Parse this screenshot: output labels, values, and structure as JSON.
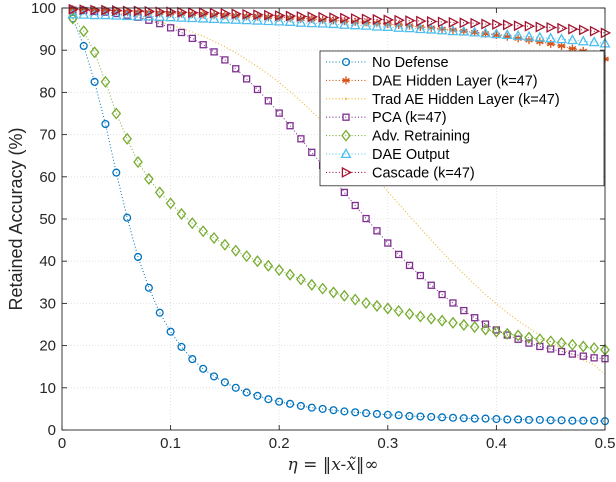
{
  "chart_data": {
    "type": "scatter",
    "title": "",
    "xlabel": "η = ‖x-x̃‖∞",
    "ylabel": "Retained Accuracy (%)",
    "xlim": [
      0,
      0.5
    ],
    "ylim": [
      0,
      100
    ],
    "xticks": [
      "0",
      "0.1",
      "0.2",
      "0.3",
      "0.4",
      "0.5"
    ],
    "yticks": [
      "0",
      "10",
      "20",
      "30",
      "40",
      "50",
      "60",
      "70",
      "80",
      "90",
      "100"
    ],
    "grid": true,
    "legend_position": "top-right",
    "x": [
      0.01,
      0.02,
      0.03,
      0.04,
      0.05,
      0.06,
      0.07,
      0.08,
      0.09,
      0.1,
      0.11,
      0.12,
      0.13,
      0.14,
      0.15,
      0.16,
      0.17,
      0.18,
      0.19,
      0.2,
      0.21,
      0.22,
      0.23,
      0.24,
      0.25,
      0.26,
      0.27,
      0.28,
      0.29,
      0.3,
      0.31,
      0.32,
      0.33,
      0.34,
      0.35,
      0.36,
      0.37,
      0.38,
      0.39,
      0.4,
      0.41,
      0.42,
      0.43,
      0.44,
      0.45,
      0.46,
      0.47,
      0.48,
      0.49,
      0.5
    ],
    "series": [
      {
        "name": "No Defense",
        "color": "#0072BD",
        "marker": "circle",
        "line": "dotted",
        "values": [
          97.5,
          91,
          82.5,
          72.5,
          61,
          50.3,
          41,
          33.7,
          27.8,
          23.3,
          19.7,
          16.8,
          14.5,
          12.7,
          11.3,
          10,
          8.9,
          8.1,
          7.3,
          6.7,
          6.2,
          5.7,
          5.3,
          5,
          4.7,
          4.4,
          4.2,
          4,
          3.8,
          3.6,
          3.5,
          3.3,
          3.2,
          3.1,
          3,
          2.9,
          2.8,
          2.7,
          2.7,
          2.6,
          2.5,
          2.5,
          2.4,
          2.4,
          2.3,
          2.3,
          2.2,
          2.2,
          2.2,
          2.1
        ]
      },
      {
        "name": "DAE Hidden Layer (k=47)",
        "color": "#D95319",
        "marker": "asterisk",
        "line": "dotted",
        "values": [
          99.7,
          99.6,
          99.5,
          99.4,
          99.3,
          99.2,
          99.1,
          99,
          98.9,
          98.8,
          98.7,
          98.6,
          98.5,
          98.4,
          98.3,
          98.2,
          98.1,
          98,
          97.9,
          97.8,
          97.7,
          97.5,
          97.4,
          97.2,
          97.1,
          96.9,
          96.7,
          96.6,
          96.4,
          96.2,
          96,
          95.8,
          95.5,
          95.3,
          95,
          94.8,
          94.5,
          94.2,
          93.9,
          93.6,
          93.2,
          92.8,
          92.4,
          92,
          91.5,
          91,
          90.4,
          89.8,
          89,
          87.9
        ]
      },
      {
        "name": "Trad AE Hidden Layer (k=47)",
        "color": "#EDB120",
        "marker": "dot",
        "line": "dotted",
        "values": [
          99.7,
          99.5,
          99.3,
          99,
          98.7,
          98.3,
          97.9,
          97.3,
          96.7,
          96,
          95.2,
          94.3,
          93.3,
          92.1,
          90.8,
          89.4,
          87.8,
          86.1,
          84.3,
          82.3,
          80.2,
          77.9,
          75.5,
          73,
          70.4,
          67.7,
          65,
          62.2,
          59.4,
          56.5,
          53.6,
          50.7,
          47.8,
          45,
          42.2,
          39.5,
          37,
          34.5,
          32.1,
          29.9,
          27.8,
          25.9,
          24.1,
          22.4,
          20.8,
          19.3,
          17.9,
          16.6,
          15.4,
          13.2
        ]
      },
      {
        "name": "PCA (k=47)",
        "color": "#7E2F8E",
        "marker": "square",
        "line": "dotted",
        "values": [
          99.5,
          99.4,
          99.2,
          99,
          98.7,
          98.3,
          97.8,
          97.1,
          96.3,
          95.3,
          94.2,
          92.8,
          91.3,
          89.6,
          87.7,
          85.6,
          83.2,
          80.7,
          78,
          75.1,
          72.1,
          69,
          65.8,
          62.7,
          59.5,
          56.3,
          53.2,
          50.1,
          47.2,
          44.3,
          41.6,
          39,
          36.6,
          34.3,
          32.1,
          30.1,
          28.3,
          26.6,
          25.1,
          23.7,
          22.5,
          21.5,
          20.6,
          19.8,
          19.2,
          18.6,
          18,
          17.5,
          17.1,
          16.9
        ]
      },
      {
        "name": "Adv. Retraining",
        "color": "#77AC30",
        "marker": "diamond",
        "line": "dotted",
        "values": [
          97.5,
          94.5,
          89.5,
          82.5,
          75,
          69,
          63.5,
          59.5,
          56.3,
          53.7,
          51.2,
          49,
          47.1,
          45.5,
          43.9,
          42.5,
          41.2,
          40,
          38.9,
          37.9,
          36.8,
          35.7,
          34.4,
          33.5,
          32.6,
          31.8,
          30.9,
          30.1,
          29.4,
          28.8,
          28.2,
          27.5,
          26.9,
          26.4,
          25.9,
          25.4,
          24.9,
          24.4,
          23.8,
          23.3,
          22.8,
          22.4,
          21.9,
          21.5,
          21,
          20.6,
          20.2,
          19.8,
          19.4,
          19
        ]
      },
      {
        "name": "DAE Output",
        "color": "#4DBEEE",
        "marker": "triangle-up",
        "line": "dotted",
        "values": [
          98.5,
          98.4,
          98.3,
          98.3,
          98.2,
          98.1,
          98,
          98,
          97.9,
          97.8,
          97.7,
          97.6,
          97.5,
          97.4,
          97.3,
          97.2,
          97.1,
          97,
          96.9,
          96.8,
          96.7,
          96.5,
          96.4,
          96.3,
          96.2,
          96,
          95.9,
          95.8,
          95.6,
          95.5,
          95.3,
          95.2,
          95,
          94.9,
          94.7,
          94.5,
          94.4,
          94.2,
          94,
          93.8,
          93.6,
          93.4,
          93.2,
          93,
          92.8,
          92.6,
          92.4,
          92.1,
          91.9,
          91.6
        ]
      },
      {
        "name": "Cascade (k=47)",
        "color": "#A2142F",
        "marker": "triangle-right",
        "line": "dotted",
        "values": [
          99.7,
          99.6,
          99.5,
          99.5,
          99.4,
          99.3,
          99.3,
          99.2,
          99.1,
          99.1,
          99,
          98.9,
          98.9,
          98.8,
          98.7,
          98.6,
          98.5,
          98.4,
          98.3,
          98.2,
          98.1,
          98,
          97.9,
          97.8,
          97.7,
          97.6,
          97.5,
          97.4,
          97.3,
          97.2,
          97.1,
          97,
          96.9,
          96.8,
          96.7,
          96.6,
          96.5,
          96.4,
          96.2,
          96.1,
          96,
          95.8,
          95.7,
          95.5,
          95.4,
          95.2,
          95,
          94.8,
          94.5,
          94.1
        ]
      }
    ]
  }
}
